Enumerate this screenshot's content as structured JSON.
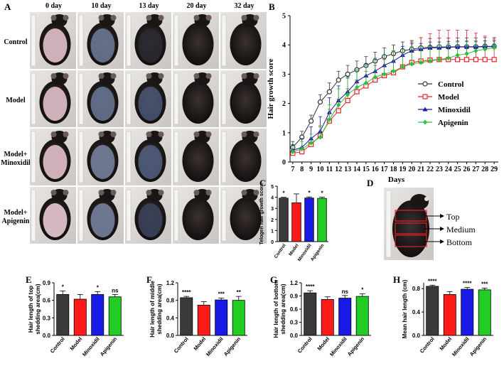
{
  "panelA": {
    "letter": "A",
    "columns": [
      "0 day",
      "10 day",
      "13 day",
      "20 day",
      "32 day"
    ],
    "rows": [
      "Control",
      "Model",
      "Model+\nMinoxidil",
      "Model+\nApigenin"
    ]
  },
  "chart_data": [
    {
      "id": "B",
      "letter": "B",
      "type": "line",
      "ylabel": "Hair growth score",
      "xlabel": "Days",
      "ylim": [
        0,
        5
      ],
      "yticks": [
        0,
        1,
        2,
        3,
        4,
        5
      ],
      "x": [
        7,
        8,
        9,
        10,
        11,
        12,
        13,
        14,
        15,
        16,
        17,
        18,
        19,
        20,
        21,
        22,
        23,
        24,
        25,
        26,
        27,
        28,
        29
      ],
      "series": [
        {
          "name": "Control",
          "color": "#333333",
          "marker": "circle",
          "values": [
            0.5,
            0.85,
            1.4,
            2.05,
            2.4,
            2.8,
            3.0,
            3.15,
            3.3,
            3.45,
            3.6,
            3.7,
            3.8,
            3.85,
            3.9,
            3.92,
            3.93,
            3.93,
            3.94,
            3.94,
            3.94,
            3.95,
            3.95
          ],
          "err": [
            0.2,
            0.2,
            0.2,
            0.25,
            0.3,
            0.3,
            0.3,
            0.3,
            0.3,
            0.3,
            0.3,
            0.3,
            0.3,
            0.3,
            0.35,
            0.3,
            0.3,
            0.3,
            0.3,
            0.3,
            0.3,
            0.3,
            0.3
          ]
        },
        {
          "name": "Model",
          "color": "#e8222a",
          "marker": "square",
          "values": [
            0.3,
            0.35,
            0.6,
            0.9,
            1.4,
            1.75,
            2.1,
            2.4,
            2.6,
            2.8,
            2.95,
            3.05,
            3.25,
            3.4,
            3.45,
            3.48,
            3.5,
            3.5,
            3.5,
            3.5,
            3.5,
            3.5,
            3.5
          ],
          "err": [
            0.1,
            0.15,
            0.15,
            0.3,
            0.4,
            0.4,
            0.4,
            0.4,
            0.5,
            0.5,
            0.55,
            0.6,
            0.6,
            0.7,
            0.8,
            0.9,
            1.0,
            1.0,
            1.0,
            1.0,
            0.9,
            0.8,
            0.7
          ]
        },
        {
          "name": "Minoxidil",
          "color": "#1a1aa8",
          "marker": "triangle",
          "values": [
            0.4,
            0.5,
            0.8,
            1.05,
            1.7,
            2.1,
            2.4,
            2.75,
            2.95,
            3.1,
            3.3,
            3.45,
            3.65,
            3.8,
            3.85,
            3.9,
            3.9,
            3.92,
            3.93,
            3.93,
            3.93,
            3.94,
            3.94
          ],
          "err": [
            0.2,
            0.3,
            0.4,
            0.5,
            0.5,
            0.5,
            0.5,
            0.4,
            0.4,
            0.4,
            0.35,
            0.35,
            0.3,
            0.25,
            0.2,
            0.2,
            0.2,
            0.2,
            0.2,
            0.2,
            0.2,
            0.2,
            0.2
          ]
        },
        {
          "name": "Apigenin",
          "color": "#2ec03a",
          "marker": "diamond",
          "values": [
            0.35,
            0.45,
            0.65,
            0.85,
            1.45,
            1.95,
            2.3,
            2.55,
            2.7,
            2.9,
            3.0,
            3.1,
            3.25,
            3.35,
            3.4,
            3.45,
            3.5,
            3.55,
            3.65,
            3.7,
            3.8,
            3.85,
            3.9
          ],
          "err": [
            0.2,
            0.25,
            0.3,
            0.4,
            0.5,
            0.55,
            0.55,
            0.6,
            0.6,
            0.65,
            0.65,
            0.7,
            0.6,
            0.6,
            0.55,
            0.5,
            0.5,
            0.5,
            0.45,
            0.4,
            0.3,
            0.2,
            0.15
          ]
        }
      ]
    },
    {
      "id": "C",
      "letter": "C",
      "type": "bar",
      "ylabel": "Telogen hair growth score",
      "ylim": [
        0,
        5
      ],
      "yticks": [
        0,
        1,
        2,
        3,
        4,
        5
      ],
      "categories": [
        "Control",
        "Model",
        "Minoxidil",
        "Apigenin"
      ],
      "values": [
        3.92,
        3.5,
        3.93,
        3.9
      ],
      "err": [
        0.08,
        0.8,
        0.1,
        0.12
      ],
      "sig": [
        "*",
        "",
        "*",
        "*"
      ],
      "colors": [
        "#3a3a3a",
        "#ff1a1a",
        "#1a1ae6",
        "#22cc22"
      ]
    },
    {
      "id": "E",
      "letter": "E",
      "type": "bar",
      "ylabel": "Hair length of top\nshedding area(cm)",
      "ylim": [
        0,
        0.9
      ],
      "yticks": [
        "0.0",
        "0.3",
        "0.6",
        "0.9"
      ],
      "categories": [
        "Control",
        "Model",
        "Minoxidil",
        "Apigenin"
      ],
      "values": [
        0.7,
        0.62,
        0.7,
        0.66
      ],
      "err": [
        0.06,
        0.08,
        0.05,
        0.04
      ],
      "sig": [
        "*",
        "",
        "*",
        "ns"
      ],
      "colors": [
        "#3a3a3a",
        "#ff1a1a",
        "#1a1ae6",
        "#22cc22"
      ]
    },
    {
      "id": "F",
      "letter": "F",
      "type": "bar",
      "ylabel": "Hair length of middle\nshedding area(cm)",
      "ylim": [
        0,
        1.2
      ],
      "yticks": [
        "0.0",
        "0.4",
        "0.8",
        "1.2"
      ],
      "categories": [
        "Control",
        "Model",
        "Minoxidil",
        "Apigenin"
      ],
      "values": [
        0.86,
        0.69,
        0.81,
        0.8
      ],
      "err": [
        0.03,
        0.08,
        0.04,
        0.09
      ],
      "sig": [
        "****",
        "",
        "***",
        "**"
      ],
      "colors": [
        "#3a3a3a",
        "#ff1a1a",
        "#1a1ae6",
        "#22cc22"
      ]
    },
    {
      "id": "G",
      "letter": "G",
      "type": "bar",
      "ylabel": "Hair length of bottom\nshedding area(cm)",
      "ylim": [
        0,
        1.2
      ],
      "yticks": [
        "0.0",
        "0.3",
        "0.6",
        "0.9",
        "1.2"
      ],
      "categories": [
        "Control",
        "Model",
        "Minoxidil",
        "Apigenin"
      ],
      "values": [
        0.97,
        0.82,
        0.85,
        0.89
      ],
      "err": [
        0.05,
        0.06,
        0.06,
        0.06
      ],
      "sig": [
        "****",
        "",
        "ns",
        "*"
      ],
      "colors": [
        "#3a3a3a",
        "#ff1a1a",
        "#1a1ae6",
        "#22cc22"
      ]
    },
    {
      "id": "H",
      "letter": "H",
      "type": "bar",
      "ylabel": "Mean hair length (cm)",
      "ylim": [
        0,
        0.9
      ],
      "yticks": [
        "0.0",
        "0.4",
        "0.8"
      ],
      "categories": [
        "Control",
        "Model",
        "Minoxidil",
        "Apigenin"
      ],
      "values": [
        0.84,
        0.7,
        0.79,
        0.78
      ],
      "err": [
        0.02,
        0.05,
        0.03,
        0.03
      ],
      "sig": [
        "****",
        "",
        "****",
        "***"
      ],
      "colors": [
        "#3a3a3a",
        "#ff1a1a",
        "#1a1ae6",
        "#22cc22"
      ]
    }
  ],
  "panelD": {
    "letter": "D",
    "labels": [
      "Top",
      "Medium",
      "Bottom"
    ]
  }
}
